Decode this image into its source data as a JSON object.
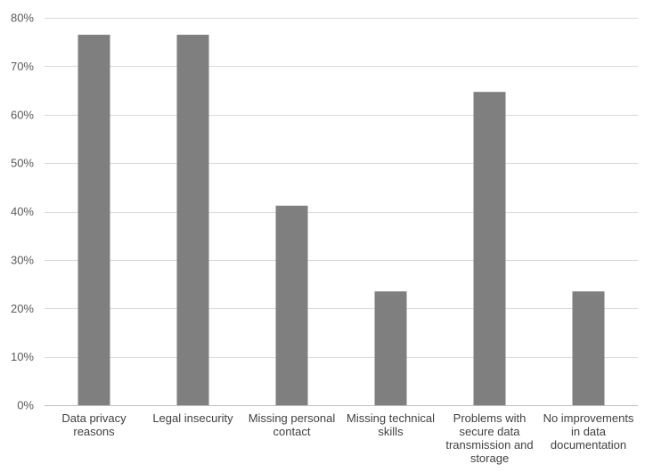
{
  "chart_data": {
    "type": "bar",
    "categories": [
      "Data privacy reasons",
      "Legal insecurity",
      "Missing personal contact",
      "Missing technical skills",
      "Problems with secure data transmission and storage",
      "No improvements in data documentation"
    ],
    "category_label_lines": [
      [
        "Data privacy",
        "reasons"
      ],
      [
        "Legal insecurity"
      ],
      [
        "Missing personal",
        "contact"
      ],
      [
        "Missing technical",
        "skills"
      ],
      [
        "Problems with",
        "secure data",
        "transmission and",
        "storage"
      ],
      [
        "No improvements",
        "in data",
        "documentation"
      ]
    ],
    "values": [
      76.5,
      76.5,
      41.2,
      23.5,
      64.7,
      23.5
    ],
    "ylim": [
      0,
      80
    ],
    "yticks": [
      0,
      10,
      20,
      30,
      40,
      50,
      60,
      70,
      80
    ],
    "ytick_labels": [
      "0%",
      "10%",
      "20%",
      "30%",
      "40%",
      "50%",
      "60%",
      "70%",
      "80%"
    ],
    "grid": true,
    "legend": "none",
    "title": "",
    "xlabel": "",
    "ylabel": "",
    "colors": {
      "bar": "#7f7f7f",
      "grid": "#d9d9d9",
      "axis": "#bfbfbf",
      "text": "#404040",
      "tick_text": "#595959"
    }
  }
}
